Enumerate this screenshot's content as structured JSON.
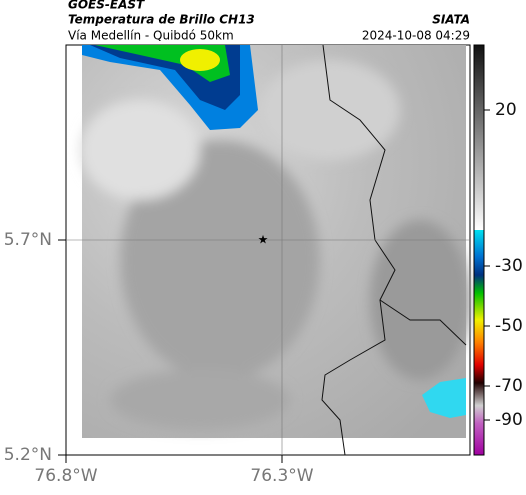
{
  "header": {
    "title": "GOES-EAST",
    "subtitle": "Temperatura de Brillo CH13",
    "route": "Vía Medellín - Quibdó 50km",
    "source": "SIATA",
    "timestamp": "2024-10-08 04:29"
  },
  "map": {
    "lat_labels": [
      "5.7°N",
      "5.2°N"
    ],
    "lon_labels": [
      "76.8°W",
      "76.3°W"
    ]
  },
  "colorbar": {
    "ticks": [
      20,
      -30,
      -50,
      -70,
      -90
    ]
  }
}
